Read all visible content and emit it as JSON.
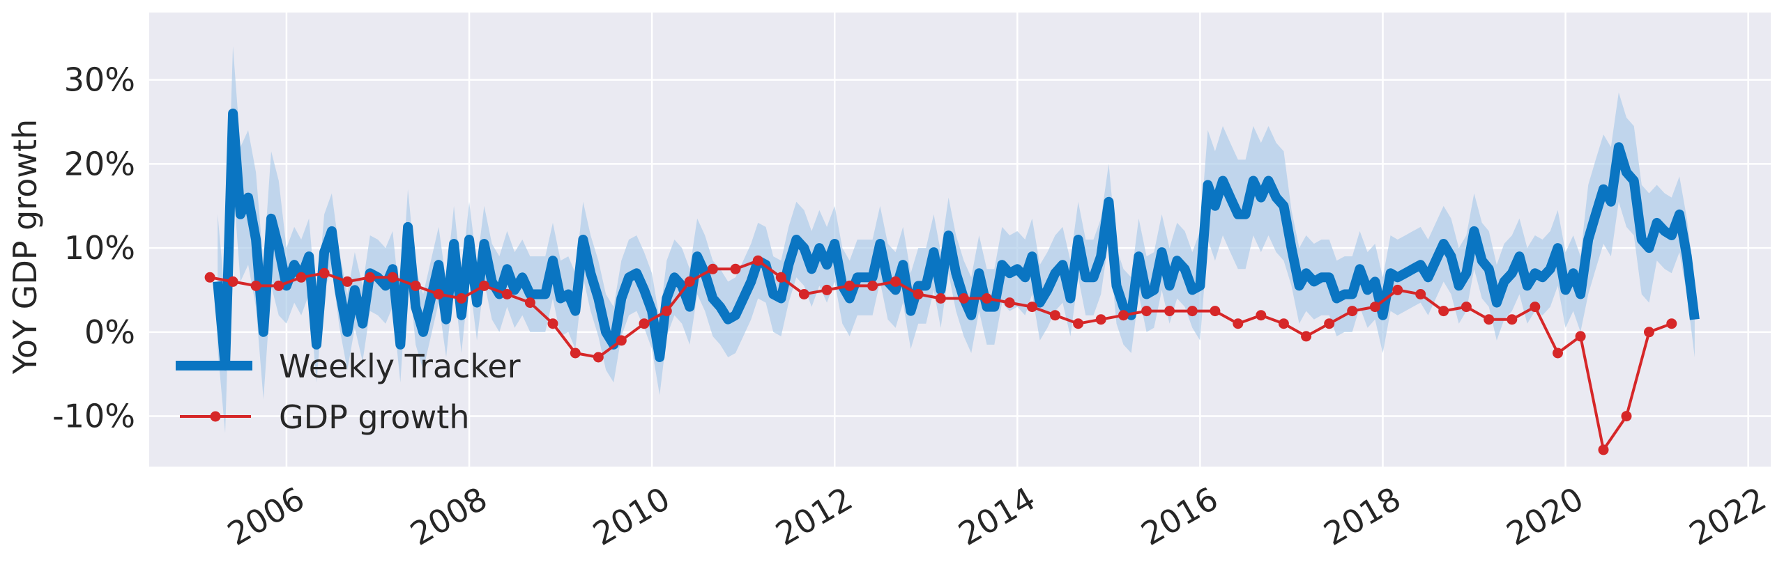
{
  "chart_data": {
    "type": "line",
    "ylabel": "YoY GDP growth",
    "xlim": [
      "2004-07-01",
      "2022-04-01"
    ],
    "ylim": [
      -16,
      38
    ],
    "y_tick_values": [
      -10,
      0,
      10,
      20,
      30
    ],
    "y_tick_labels": [
      "-10%",
      "0%",
      "10%",
      "20%",
      "30%"
    ],
    "x_tick_values": [
      "2006-01-01",
      "2008-01-01",
      "2010-01-01",
      "2012-01-01",
      "2014-01-01",
      "2016-01-01",
      "2018-01-01",
      "2020-01-01",
      "2022-01-01"
    ],
    "x_tick_labels": [
      "2006",
      "2008",
      "2010",
      "2012",
      "2014",
      "2016",
      "2018",
      "2020",
      "2022"
    ],
    "grid": true,
    "legend_position": "lower-left",
    "colors": {
      "background": "#eaeaf2",
      "grid": "#ffffff",
      "tracker": "#0a75c2",
      "band": "#a9c9e8",
      "gdp": "#d62728"
    },
    "series": [
      {
        "name": "Weekly Tracker",
        "style": "thick-line-with-band",
        "x": [
          "2005-04-01",
          "2005-05-01",
          "2005-06-01",
          "2005-07-01",
          "2005-08-01",
          "2005-09-01",
          "2005-10-01",
          "2005-11-01",
          "2005-12-01",
          "2006-01-01",
          "2006-02-01",
          "2006-03-01",
          "2006-04-01",
          "2006-05-01",
          "2006-06-01",
          "2006-07-01",
          "2006-08-01",
          "2006-09-01",
          "2006-10-01",
          "2006-11-01",
          "2006-12-01",
          "2007-01-01",
          "2007-02-01",
          "2007-03-01",
          "2007-04-01",
          "2007-05-01",
          "2007-06-01",
          "2007-07-01",
          "2007-08-01",
          "2007-09-01",
          "2007-10-01",
          "2007-11-01",
          "2007-12-01",
          "2008-01-01",
          "2008-02-01",
          "2008-03-01",
          "2008-04-01",
          "2008-05-01",
          "2008-06-01",
          "2008-07-01",
          "2008-08-01",
          "2008-09-01",
          "2008-10-01",
          "2008-11-01",
          "2008-12-01",
          "2009-01-01",
          "2009-02-01",
          "2009-03-01",
          "2009-04-01",
          "2009-05-01",
          "2009-06-01",
          "2009-07-01",
          "2009-08-01",
          "2009-09-01",
          "2009-10-01",
          "2009-11-01",
          "2009-12-01",
          "2010-01-01",
          "2010-02-01",
          "2010-03-01",
          "2010-04-01",
          "2010-05-01",
          "2010-06-01",
          "2010-07-01",
          "2010-08-01",
          "2010-09-01",
          "2010-10-01",
          "2010-11-01",
          "2010-12-01",
          "2011-01-01",
          "2011-02-01",
          "2011-03-01",
          "2011-04-01",
          "2011-05-01",
          "2011-06-01",
          "2011-07-01",
          "2011-08-01",
          "2011-09-01",
          "2011-10-01",
          "2011-11-01",
          "2011-12-01",
          "2012-01-01",
          "2012-02-01",
          "2012-03-01",
          "2012-04-01",
          "2012-05-01",
          "2012-06-01",
          "2012-07-01",
          "2012-08-01",
          "2012-09-01",
          "2012-10-01",
          "2012-11-01",
          "2012-12-01",
          "2013-01-01",
          "2013-02-01",
          "2013-03-01",
          "2013-04-01",
          "2013-05-01",
          "2013-06-01",
          "2013-07-01",
          "2013-08-01",
          "2013-09-01",
          "2013-10-01",
          "2013-11-01",
          "2013-12-01",
          "2014-01-01",
          "2014-02-01",
          "2014-03-01",
          "2014-04-01",
          "2014-05-01",
          "2014-06-01",
          "2014-07-01",
          "2014-08-01",
          "2014-09-01",
          "2014-10-01",
          "2014-11-01",
          "2014-12-01",
          "2015-01-01",
          "2015-02-01",
          "2015-03-01",
          "2015-04-01",
          "2015-05-01",
          "2015-06-01",
          "2015-07-01",
          "2015-08-01",
          "2015-09-01",
          "2015-10-01",
          "2015-11-01",
          "2015-12-01",
          "2016-01-01",
          "2016-02-01",
          "2016-03-01",
          "2016-04-01",
          "2016-05-01",
          "2016-06-01",
          "2016-07-01",
          "2016-08-01",
          "2016-09-01",
          "2016-10-01",
          "2016-11-01",
          "2016-12-01",
          "2017-01-01",
          "2017-02-01",
          "2017-03-01",
          "2017-04-01",
          "2017-05-01",
          "2017-06-01",
          "2017-07-01",
          "2017-08-01",
          "2017-09-01",
          "2017-10-01",
          "2017-11-01",
          "2017-12-01",
          "2018-01-01",
          "2018-02-01",
          "2018-03-01",
          "2018-04-01",
          "2018-05-01",
          "2018-06-01",
          "2018-07-01",
          "2018-08-01",
          "2018-09-01",
          "2018-10-01",
          "2018-11-01",
          "2018-12-01",
          "2019-01-01",
          "2019-02-01",
          "2019-03-01",
          "2019-04-01",
          "2019-05-01",
          "2019-06-01",
          "2019-07-01",
          "2019-08-01",
          "2019-09-01",
          "2019-10-01",
          "2019-11-01",
          "2019-12-01",
          "2020-01-01",
          "2020-02-01",
          "2020-03-01",
          "2020-04-01",
          "2020-05-01",
          "2020-06-01",
          "2020-07-01",
          "2020-08-01",
          "2020-09-01",
          "2020-10-01",
          "2020-11-01",
          "2020-12-01",
          "2021-01-01",
          "2021-02-01",
          "2021-03-01",
          "2021-04-01",
          "2021-05-01",
          "2021-06-01"
        ],
        "values": [
          6,
          -4,
          26,
          14,
          16,
          11,
          0,
          13.5,
          10,
          5.5,
          8,
          6.5,
          9,
          -1.5,
          9.5,
          12,
          5,
          0,
          5,
          1,
          7,
          6.5,
          5.5,
          7.5,
          -1.5,
          12.5,
          3,
          0,
          4,
          8,
          1.5,
          10.5,
          2,
          11,
          3.5,
          10.5,
          6,
          4.5,
          7.5,
          5,
          6.5,
          4.5,
          4.5,
          4.5,
          8.5,
          4,
          4.5,
          2.5,
          11,
          7,
          4,
          0,
          -1.5,
          4,
          6.5,
          7,
          5,
          2.5,
          -3,
          4,
          6.5,
          5.5,
          3,
          9,
          7,
          4,
          3,
          1.5,
          2,
          4,
          6,
          8.5,
          8,
          4.5,
          4,
          8,
          11,
          10,
          7.5,
          10,
          8,
          10.5,
          5.5,
          4,
          6.5,
          6.5,
          6.5,
          10.5,
          6,
          5,
          8,
          2.5,
          5.5,
          5.5,
          9.5,
          5,
          11.5,
          7,
          4,
          2,
          7,
          3,
          3,
          8,
          7,
          7.5,
          6.5,
          9,
          3.5,
          5,
          7,
          8,
          4,
          11,
          6.5,
          6.5,
          9,
          15.5,
          5.5,
          3,
          2,
          9,
          4.5,
          5,
          9.5,
          5.5,
          8.5,
          7.5,
          5,
          5.5,
          17.5,
          15,
          18,
          16,
          14,
          14,
          18,
          16,
          18,
          16,
          15,
          10,
          5.5,
          7,
          6,
          6.5,
          6.5,
          4,
          4.5,
          4.5,
          7.5,
          5,
          6,
          2,
          7,
          6.5,
          7,
          7.5,
          8,
          6.5,
          8.5,
          10.5,
          9,
          5.5,
          7,
          12,
          8.5,
          7.5,
          3.5,
          6,
          7,
          9,
          5.5,
          7,
          6.5,
          7.5,
          10,
          5,
          7,
          4.5,
          11,
          14,
          17,
          15.5,
          22,
          19,
          18,
          11,
          10,
          13,
          12,
          11.5,
          14,
          9,
          1.5
        ]
      },
      {
        "name": "GDP growth",
        "style": "line-with-markers",
        "x": [
          "2005-03-01",
          "2005-06-01",
          "2005-09-01",
          "2005-12-01",
          "2006-03-01",
          "2006-06-01",
          "2006-09-01",
          "2006-12-01",
          "2007-03-01",
          "2007-06-01",
          "2007-09-01",
          "2007-12-01",
          "2008-03-01",
          "2008-06-01",
          "2008-09-01",
          "2008-12-01",
          "2009-03-01",
          "2009-06-01",
          "2009-09-01",
          "2009-12-01",
          "2010-03-01",
          "2010-06-01",
          "2010-09-01",
          "2010-12-01",
          "2011-03-01",
          "2011-06-01",
          "2011-09-01",
          "2011-12-01",
          "2012-03-01",
          "2012-06-01",
          "2012-09-01",
          "2012-12-01",
          "2013-03-01",
          "2013-06-01",
          "2013-09-01",
          "2013-12-01",
          "2014-03-01",
          "2014-06-01",
          "2014-09-01",
          "2014-12-01",
          "2015-03-01",
          "2015-06-01",
          "2015-09-01",
          "2015-12-01",
          "2016-03-01",
          "2016-06-01",
          "2016-09-01",
          "2016-12-01",
          "2017-03-01",
          "2017-06-01",
          "2017-09-01",
          "2017-12-01",
          "2018-03-01",
          "2018-06-01",
          "2018-09-01",
          "2018-12-01",
          "2019-03-01",
          "2019-06-01",
          "2019-09-01",
          "2019-12-01",
          "2020-03-01",
          "2020-06-01",
          "2020-09-01",
          "2020-12-01",
          "2021-03-01"
        ],
        "values": [
          6.5,
          6,
          5.5,
          5.5,
          6.5,
          7,
          6,
          6.5,
          6.5,
          5.5,
          4.5,
          4,
          5.5,
          4.5,
          3.5,
          1,
          -2.5,
          -3,
          -1,
          1,
          2.5,
          6,
          7.5,
          7.5,
          8.5,
          6.5,
          4.5,
          5,
          5.5,
          5.5,
          6,
          4.5,
          4,
          4,
          4,
          3.5,
          3,
          2,
          1,
          1.5,
          2,
          2.5,
          2.5,
          2.5,
          2.5,
          1,
          2,
          1,
          -0.5,
          1,
          2.5,
          3,
          5,
          4.5,
          2.5,
          3,
          1.5,
          1.5,
          3,
          -2.5,
          -0.5,
          -14,
          -10,
          0,
          1
        ]
      }
    ]
  }
}
